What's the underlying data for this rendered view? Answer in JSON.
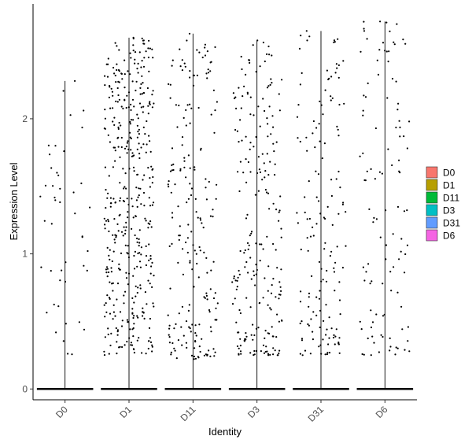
{
  "chart_data": {
    "type": "violin",
    "xlabel": "Identity",
    "ylabel": "Expression Level",
    "ylim": [
      -0.08,
      2.85
    ],
    "yticks": [
      0,
      1,
      2
    ],
    "categories": [
      "D0",
      "D1",
      "D11",
      "D3",
      "D31",
      "D6"
    ],
    "violin_max": [
      2.28,
      2.6,
      2.63,
      2.58,
      2.65,
      2.72
    ],
    "series": [
      {
        "name": "D0",
        "color": "#F8766D",
        "point_count": 45,
        "nonzero_range": [
          0.25,
          2.28
        ]
      },
      {
        "name": "D1",
        "color": "#B79F00",
        "point_count": 420,
        "nonzero_range": [
          0.25,
          2.6
        ]
      },
      {
        "name": "D11",
        "color": "#00BA38",
        "point_count": 200,
        "nonzero_range": [
          0.22,
          2.63
        ]
      },
      {
        "name": "D3",
        "color": "#00BFC4",
        "point_count": 220,
        "nonzero_range": [
          0.25,
          2.58
        ]
      },
      {
        "name": "D31",
        "color": "#619CFF",
        "point_count": 150,
        "nonzero_range": [
          0.25,
          2.65
        ]
      },
      {
        "name": "D6",
        "color": "#F564E3",
        "point_count": 110,
        "nonzero_range": [
          0.25,
          2.72
        ]
      }
    ],
    "grid": false,
    "legend": "right"
  }
}
